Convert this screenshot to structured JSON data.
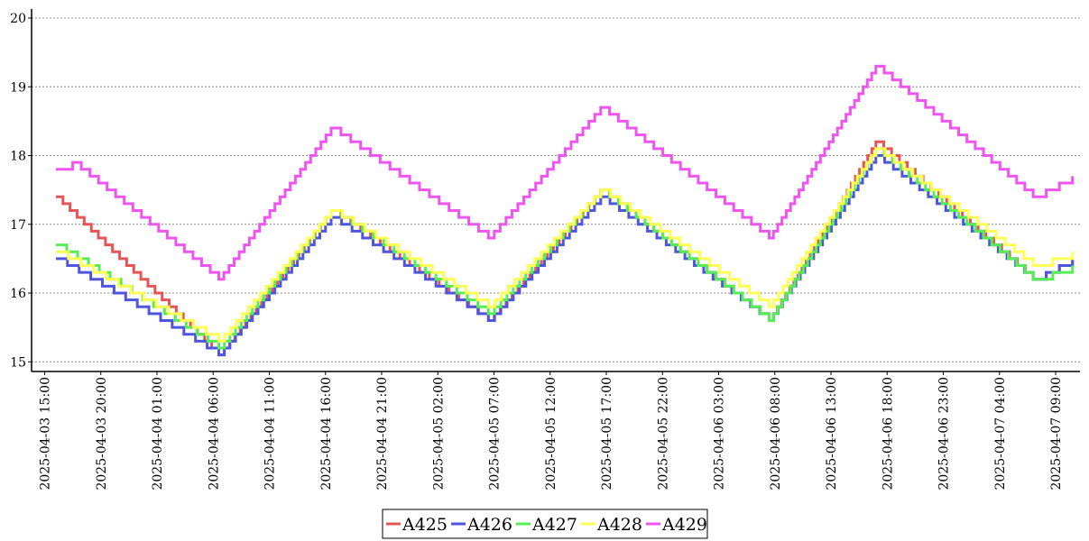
{
  "chart_data": {
    "type": "line",
    "title": "",
    "xlabel": "",
    "ylabel": "",
    "ylim": [
      15,
      20
    ],
    "yticks": [
      15,
      16,
      17,
      18,
      19,
      20
    ],
    "xlim": [
      "2025-04-03 13:30",
      "2025-04-07 12:00"
    ],
    "xticks": [
      "2025-04-03 15:00",
      "2025-04-03 20:00",
      "2025-04-04 01:00",
      "2025-04-04 06:00",
      "2025-04-04 11:00",
      "2025-04-04 16:00",
      "2025-04-04 21:00",
      "2025-04-05 02:00",
      "2025-04-05 07:00",
      "2025-04-05 12:00",
      "2025-04-05 17:00",
      "2025-04-05 22:00",
      "2025-04-06 03:00",
      "2025-04-06 08:00",
      "2025-04-06 13:00",
      "2025-04-06 18:00",
      "2025-04-06 23:00",
      "2025-04-07 04:00",
      "2025-04-07 09:00"
    ],
    "grid": "horizontal-dotted",
    "legend": "bottom-center",
    "series": [
      {
        "name": "A425",
        "color": "#e65555",
        "x": [
          "2025-04-03 16:00",
          "2025-04-04 06:30",
          "2025-04-04 16:30",
          "2025-04-05 06:30",
          "2025-04-05 16:30",
          "2025-04-06 07:30",
          "2025-04-06 17:00",
          "2025-04-07 07:00",
          "2025-04-07 10:30"
        ],
        "y": [
          17.4,
          15.1,
          17.2,
          15.6,
          17.5,
          15.6,
          18.2,
          16.2,
          16.5
        ]
      },
      {
        "name": "A426",
        "color": "#4f55dd",
        "x": [
          "2025-04-03 16:00",
          "2025-04-04 06:30",
          "2025-04-04 16:30",
          "2025-04-05 06:30",
          "2025-04-05 16:30",
          "2025-04-06 07:30",
          "2025-04-06 17:00",
          "2025-04-07 07:00",
          "2025-04-07 10:30"
        ],
        "y": [
          16.5,
          15.1,
          17.1,
          15.6,
          17.4,
          15.6,
          18.0,
          16.2,
          16.5
        ]
      },
      {
        "name": "A427",
        "color": "#55ee55",
        "x": [
          "2025-04-03 16:00",
          "2025-04-04 06:30",
          "2025-04-04 16:30",
          "2025-04-05 06:30",
          "2025-04-05 16:30",
          "2025-04-06 07:30",
          "2025-04-06 17:00",
          "2025-04-07 07:00",
          "2025-04-07 10:30"
        ],
        "y": [
          16.7,
          15.2,
          17.2,
          15.7,
          17.5,
          15.6,
          18.1,
          16.2,
          16.4
        ]
      },
      {
        "name": "A428",
        "color": "#ffff55",
        "x": [
          "2025-04-03 16:00",
          "2025-04-04 06:30",
          "2025-04-04 16:30",
          "2025-04-05 06:30",
          "2025-04-05 16:30",
          "2025-04-06 07:30",
          "2025-04-06 17:00",
          "2025-04-07 07:00",
          "2025-04-07 10:30"
        ],
        "y": [
          16.6,
          15.3,
          17.2,
          15.8,
          17.5,
          15.8,
          18.1,
          16.4,
          16.6
        ]
      },
      {
        "name": "A429",
        "color": "#ee55ee",
        "x": [
          "2025-04-03 16:00",
          "2025-04-03 17:30",
          "2025-04-04 06:30",
          "2025-04-04 16:30",
          "2025-04-05 06:30",
          "2025-04-05 16:30",
          "2025-04-06 07:30",
          "2025-04-06 17:00",
          "2025-04-07 07:00",
          "2025-04-07 10:30"
        ],
        "y": [
          17.8,
          17.9,
          16.2,
          18.4,
          16.8,
          18.7,
          16.8,
          19.3,
          17.4,
          17.7
        ]
      }
    ]
  }
}
